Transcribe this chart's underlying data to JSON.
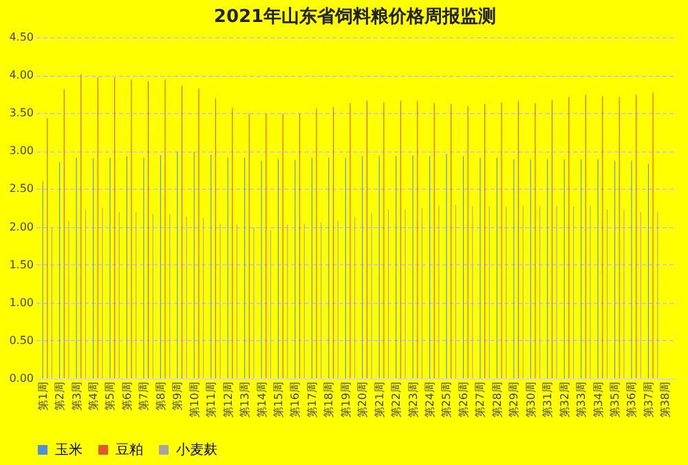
{
  "chart_data": {
    "type": "bar",
    "title": "2021年山东省饲料粮价格周报监测",
    "categories": [
      "第1周",
      "第2周",
      "第3周",
      "第4周",
      "第5周",
      "第6周",
      "第7周",
      "第8周",
      "第9周",
      "第10周",
      "第11周",
      "第12周",
      "第13周",
      "第14周",
      "第15周",
      "第16周",
      "第17周",
      "第18周",
      "第19周",
      "第20周",
      "第21周",
      "第22周",
      "第23周",
      "第24周",
      "第25周",
      "第26周",
      "第27周",
      "第28周",
      "第29周",
      "第30周",
      "第31周",
      "第32周",
      "第33周",
      "第34周",
      "第35周",
      "第36周",
      "第37周",
      "第38周"
    ],
    "series": [
      {
        "name": "玉米",
        "color": "#4f8fe0",
        "values": [
          2.6,
          2.85,
          2.91,
          2.9,
          2.91,
          2.93,
          2.91,
          2.94,
          2.99,
          2.99,
          2.95,
          2.91,
          2.91,
          2.87,
          2.89,
          2.88,
          2.91,
          2.91,
          2.91,
          2.93,
          2.93,
          2.93,
          2.94,
          2.93,
          2.96,
          2.93,
          2.91,
          2.91,
          2.89,
          2.89,
          2.89,
          2.89,
          2.89,
          2.89,
          2.87,
          2.87,
          2.83,
          null
        ]
      },
      {
        "name": "豆粕",
        "color": "#e4572e",
        "values": [
          3.43,
          3.81,
          4.01,
          3.97,
          3.97,
          3.94,
          3.92,
          3.94,
          3.86,
          3.82,
          3.69,
          3.57,
          3.49,
          3.49,
          3.49,
          3.49,
          3.56,
          3.58,
          3.63,
          3.66,
          3.64,
          3.66,
          3.66,
          3.63,
          3.62,
          3.59,
          3.62,
          3.64,
          3.66,
          3.63,
          3.67,
          3.71,
          3.74,
          3.72,
          3.71,
          3.74,
          3.77,
          null
        ]
      },
      {
        "name": "小麦麸",
        "color": "#a5a5a5",
        "values": [
          1.99,
          2.08,
          2.23,
          2.25,
          2.19,
          2.19,
          2.17,
          2.16,
          2.13,
          2.12,
          2.04,
          2.03,
          1.99,
          1.95,
          2.03,
          2.04,
          2.06,
          2.08,
          2.13,
          2.18,
          2.23,
          2.23,
          2.25,
          2.28,
          2.29,
          2.27,
          2.27,
          2.26,
          2.28,
          2.28,
          2.27,
          2.27,
          2.28,
          2.23,
          2.23,
          2.19,
          2.19,
          null
        ]
      }
    ],
    "ylim": [
      0,
      4.5
    ],
    "yticks": [
      {
        "value": 0,
        "label": "0.00"
      },
      {
        "value": 0.5,
        "label": "0.50"
      },
      {
        "value": 1,
        "label": "1.00"
      },
      {
        "value": 1.5,
        "label": "1.50"
      },
      {
        "value": 2,
        "label": "2.00"
      },
      {
        "value": 2.5,
        "label": "2.50"
      },
      {
        "value": 3,
        "label": "3.00"
      },
      {
        "value": 3.5,
        "label": "3.50"
      },
      {
        "value": 4,
        "label": "4.00"
      },
      {
        "value": 4.5,
        "label": "4.50"
      }
    ],
    "grid": "y",
    "legend": "bottom"
  }
}
